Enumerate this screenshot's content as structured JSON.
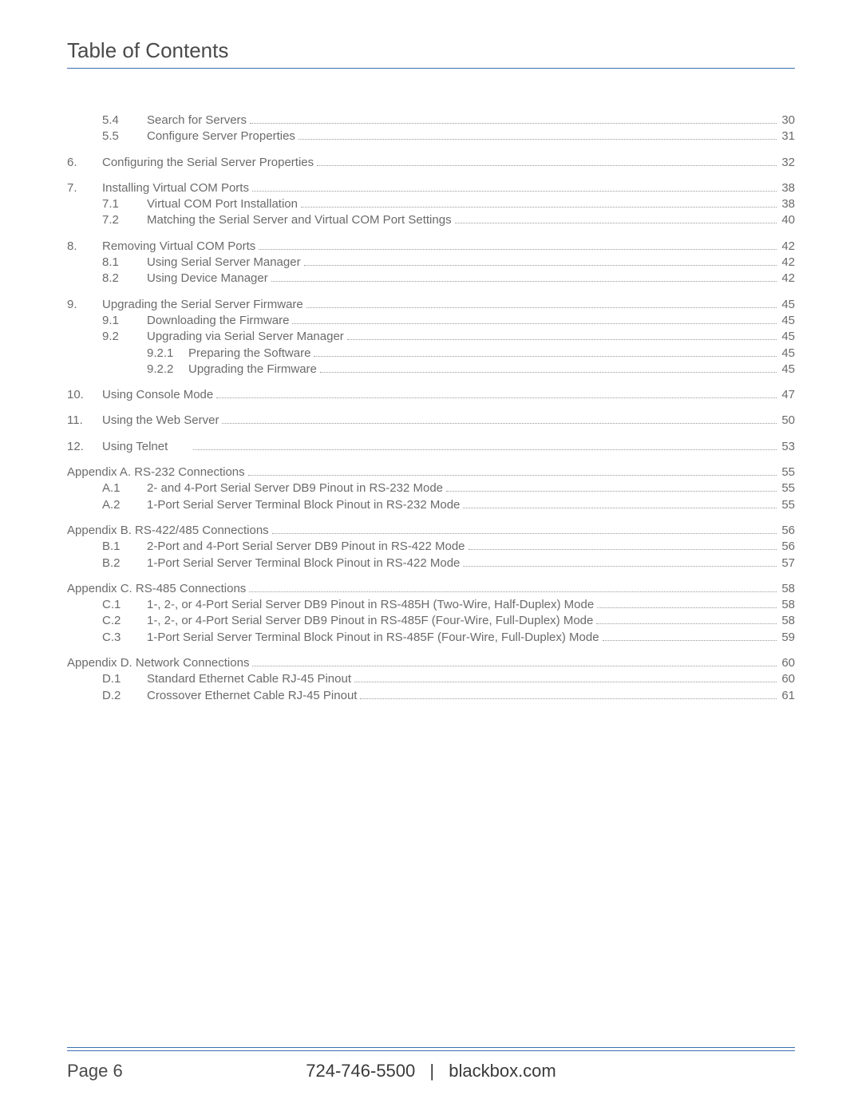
{
  "title": "Table of Contents",
  "footer": {
    "page_label": "Page 6",
    "phone": "724-746-5500",
    "site": "blackbox.com"
  },
  "toc": [
    {
      "children": [
        {
          "num": "5.4",
          "label": "Search for Servers",
          "page": "30",
          "level": 2
        },
        {
          "num": "5.5",
          "label": "Configure Server Properties",
          "page": "31",
          "level": 2
        }
      ]
    },
    {
      "num": "6.",
      "label": "Configuring the Serial Server Properties",
      "page": "32",
      "level": 1
    },
    {
      "num": "7.",
      "label": "Installing Virtual COM Ports",
      "page": "38",
      "level": 1,
      "children": [
        {
          "num": "7.1",
          "label": "Virtual COM Port Installation",
          "page": "38",
          "level": 2
        },
        {
          "num": "7.2",
          "label": "Matching the Serial Server and Virtual COM Port Settings",
          "page": "40",
          "level": 2
        }
      ]
    },
    {
      "num": "8.",
      "label": "Removing Virtual COM Ports",
      "page": "42",
      "level": 1,
      "children": [
        {
          "num": "8.1",
          "label": "Using Serial Server Manager",
          "page": "42",
          "level": 2
        },
        {
          "num": "8.2",
          "label": "Using Device Manager",
          "page": "42",
          "level": 2
        }
      ]
    },
    {
      "num": "9.",
      "label": "Upgrading the Serial Server Firmware",
      "page": "45",
      "level": 1,
      "children": [
        {
          "num": "9.1",
          "label": "Downloading the Firmware",
          "page": "45",
          "level": 2
        },
        {
          "num": "9.2",
          "label": "Upgrading via Serial Server Manager",
          "page": "45",
          "level": 2,
          "children": [
            {
              "num": "9.2.1",
              "label": "Preparing the Software",
              "page": "45",
              "level": 3
            },
            {
              "num": "9.2.2",
              "label": "Upgrading the Firmware",
              "page": "45",
              "level": 3
            }
          ]
        }
      ]
    },
    {
      "num": "10.",
      "label": "Using Console Mode",
      "page": "47",
      "level": 1
    },
    {
      "num": "11.",
      "label": "Using the Web Server",
      "page": "50",
      "level": 1
    },
    {
      "num": "12.",
      "label": "Using Telnet",
      "page": "53",
      "level": 1,
      "gap_after_label": true
    },
    {
      "label": "Appendix A. RS-232 Connections",
      "page": "55",
      "level": 1,
      "nonum": true,
      "children": [
        {
          "num": "A.1",
          "label": "2- and 4-Port Serial Server DB9 Pinout in RS-232 Mode",
          "page": "55",
          "level": 2
        },
        {
          "num": "A.2",
          "label": "1-Port Serial Server Terminal Block Pinout in RS-232 Mode",
          "page": "55",
          "level": 2
        }
      ]
    },
    {
      "label": "Appendix B. RS-422/485 Connections",
      "page": "56",
      "level": 1,
      "nonum": true,
      "children": [
        {
          "num": "B.1",
          "label": "2-Port and 4-Port Serial Server DB9 Pinout in RS-422 Mode",
          "page": "56",
          "level": 2
        },
        {
          "num": "B.2",
          "label": "1-Port Serial Server Terminal Block Pinout in RS-422 Mode",
          "page": "57",
          "level": 2
        }
      ]
    },
    {
      "label": "Appendix C. RS-485 Connections",
      "page": "58",
      "level": 1,
      "nonum": true,
      "children": [
        {
          "num": "C.1",
          "label": "1-, 2-, or 4-Port Serial Server DB9 Pinout in RS-485H (Two-Wire, Half-Duplex) Mode",
          "page": "58",
          "level": 2
        },
        {
          "num": "C.2",
          "label": "1-, 2-, or 4-Port Serial Server DB9 Pinout in RS-485F (Four-Wire, Full-Duplex) Mode",
          "page": "58",
          "level": 2
        },
        {
          "num": "C.3",
          "label": "1-Port Serial Server Terminal Block Pinout in RS-485F (Four-Wire, Full-Duplex) Mode",
          "page": "59",
          "level": 2
        }
      ]
    },
    {
      "label": "Appendix D. Network Connections",
      "page": "60",
      "level": 1,
      "nonum": true,
      "children": [
        {
          "num": "D.1",
          "label": "Standard Ethernet Cable RJ-45 Pinout",
          "page": "60",
          "level": 2
        },
        {
          "num": "D.2",
          "label": "Crossover Ethernet Cable RJ-45 Pinout",
          "page": "61",
          "level": 2
        }
      ]
    }
  ]
}
